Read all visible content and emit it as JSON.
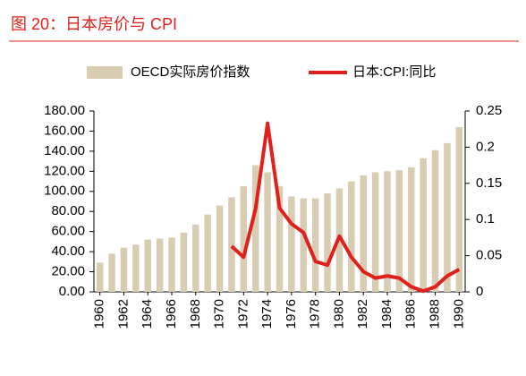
{
  "chart_data": {
    "type": "bar_line",
    "title": "图 20：日本房价与 CPI",
    "categories": [
      "1960",
      "1961",
      "1962",
      "1963",
      "1964",
      "1965",
      "1966",
      "1967",
      "1968",
      "1969",
      "1970",
      "1971",
      "1972",
      "1973",
      "1974",
      "1975",
      "1976",
      "1977",
      "1978",
      "1979",
      "1980",
      "1981",
      "1982",
      "1983",
      "1984",
      "1985",
      "1986",
      "1987",
      "1988",
      "1989",
      "1990"
    ],
    "series": [
      {
        "name": "OECD实际房价指数",
        "color": "#d8ccb2",
        "type": "bar",
        "values": [
          29,
          38,
          44,
          47,
          52,
          53,
          54,
          59,
          67,
          77,
          86,
          94,
          105,
          126,
          119,
          105,
          95,
          93,
          93,
          98,
          103,
          110,
          116,
          119,
          120,
          121,
          124,
          133,
          141,
          148,
          164
        ]
      },
      {
        "name": "日本:CPI:同比",
        "color": "#e0201b",
        "type": "line",
        "axis": "y2",
        "values": [
          null,
          null,
          null,
          null,
          null,
          null,
          null,
          null,
          null,
          null,
          null,
          0.063,
          0.048,
          0.115,
          0.233,
          0.116,
          0.094,
          0.082,
          0.042,
          0.037,
          0.077,
          0.048,
          0.028,
          0.019,
          0.022,
          0.019,
          0.007,
          0.001,
          0.007,
          0.022,
          0.031
        ]
      }
    ],
    "ylim": [
      0,
      180
    ],
    "yticks": [
      {
        "value": 0,
        "label": "0.00"
      },
      {
        "value": 20,
        "label": "20.00"
      },
      {
        "value": 40,
        "label": "40.00"
      },
      {
        "value": 60,
        "label": "60.00"
      },
      {
        "value": 80,
        "label": "80.00"
      },
      {
        "value": 100,
        "label": "100.00"
      },
      {
        "value": 120,
        "label": "120.00"
      },
      {
        "value": 140,
        "label": "140.00"
      },
      {
        "value": 160,
        "label": "160.00"
      },
      {
        "value": 180,
        "label": "180.00"
      }
    ],
    "y2lim": [
      0,
      0.25
    ],
    "y2ticks": [
      0,
      0.05,
      0.1,
      0.15,
      0.2,
      0.25
    ]
  }
}
